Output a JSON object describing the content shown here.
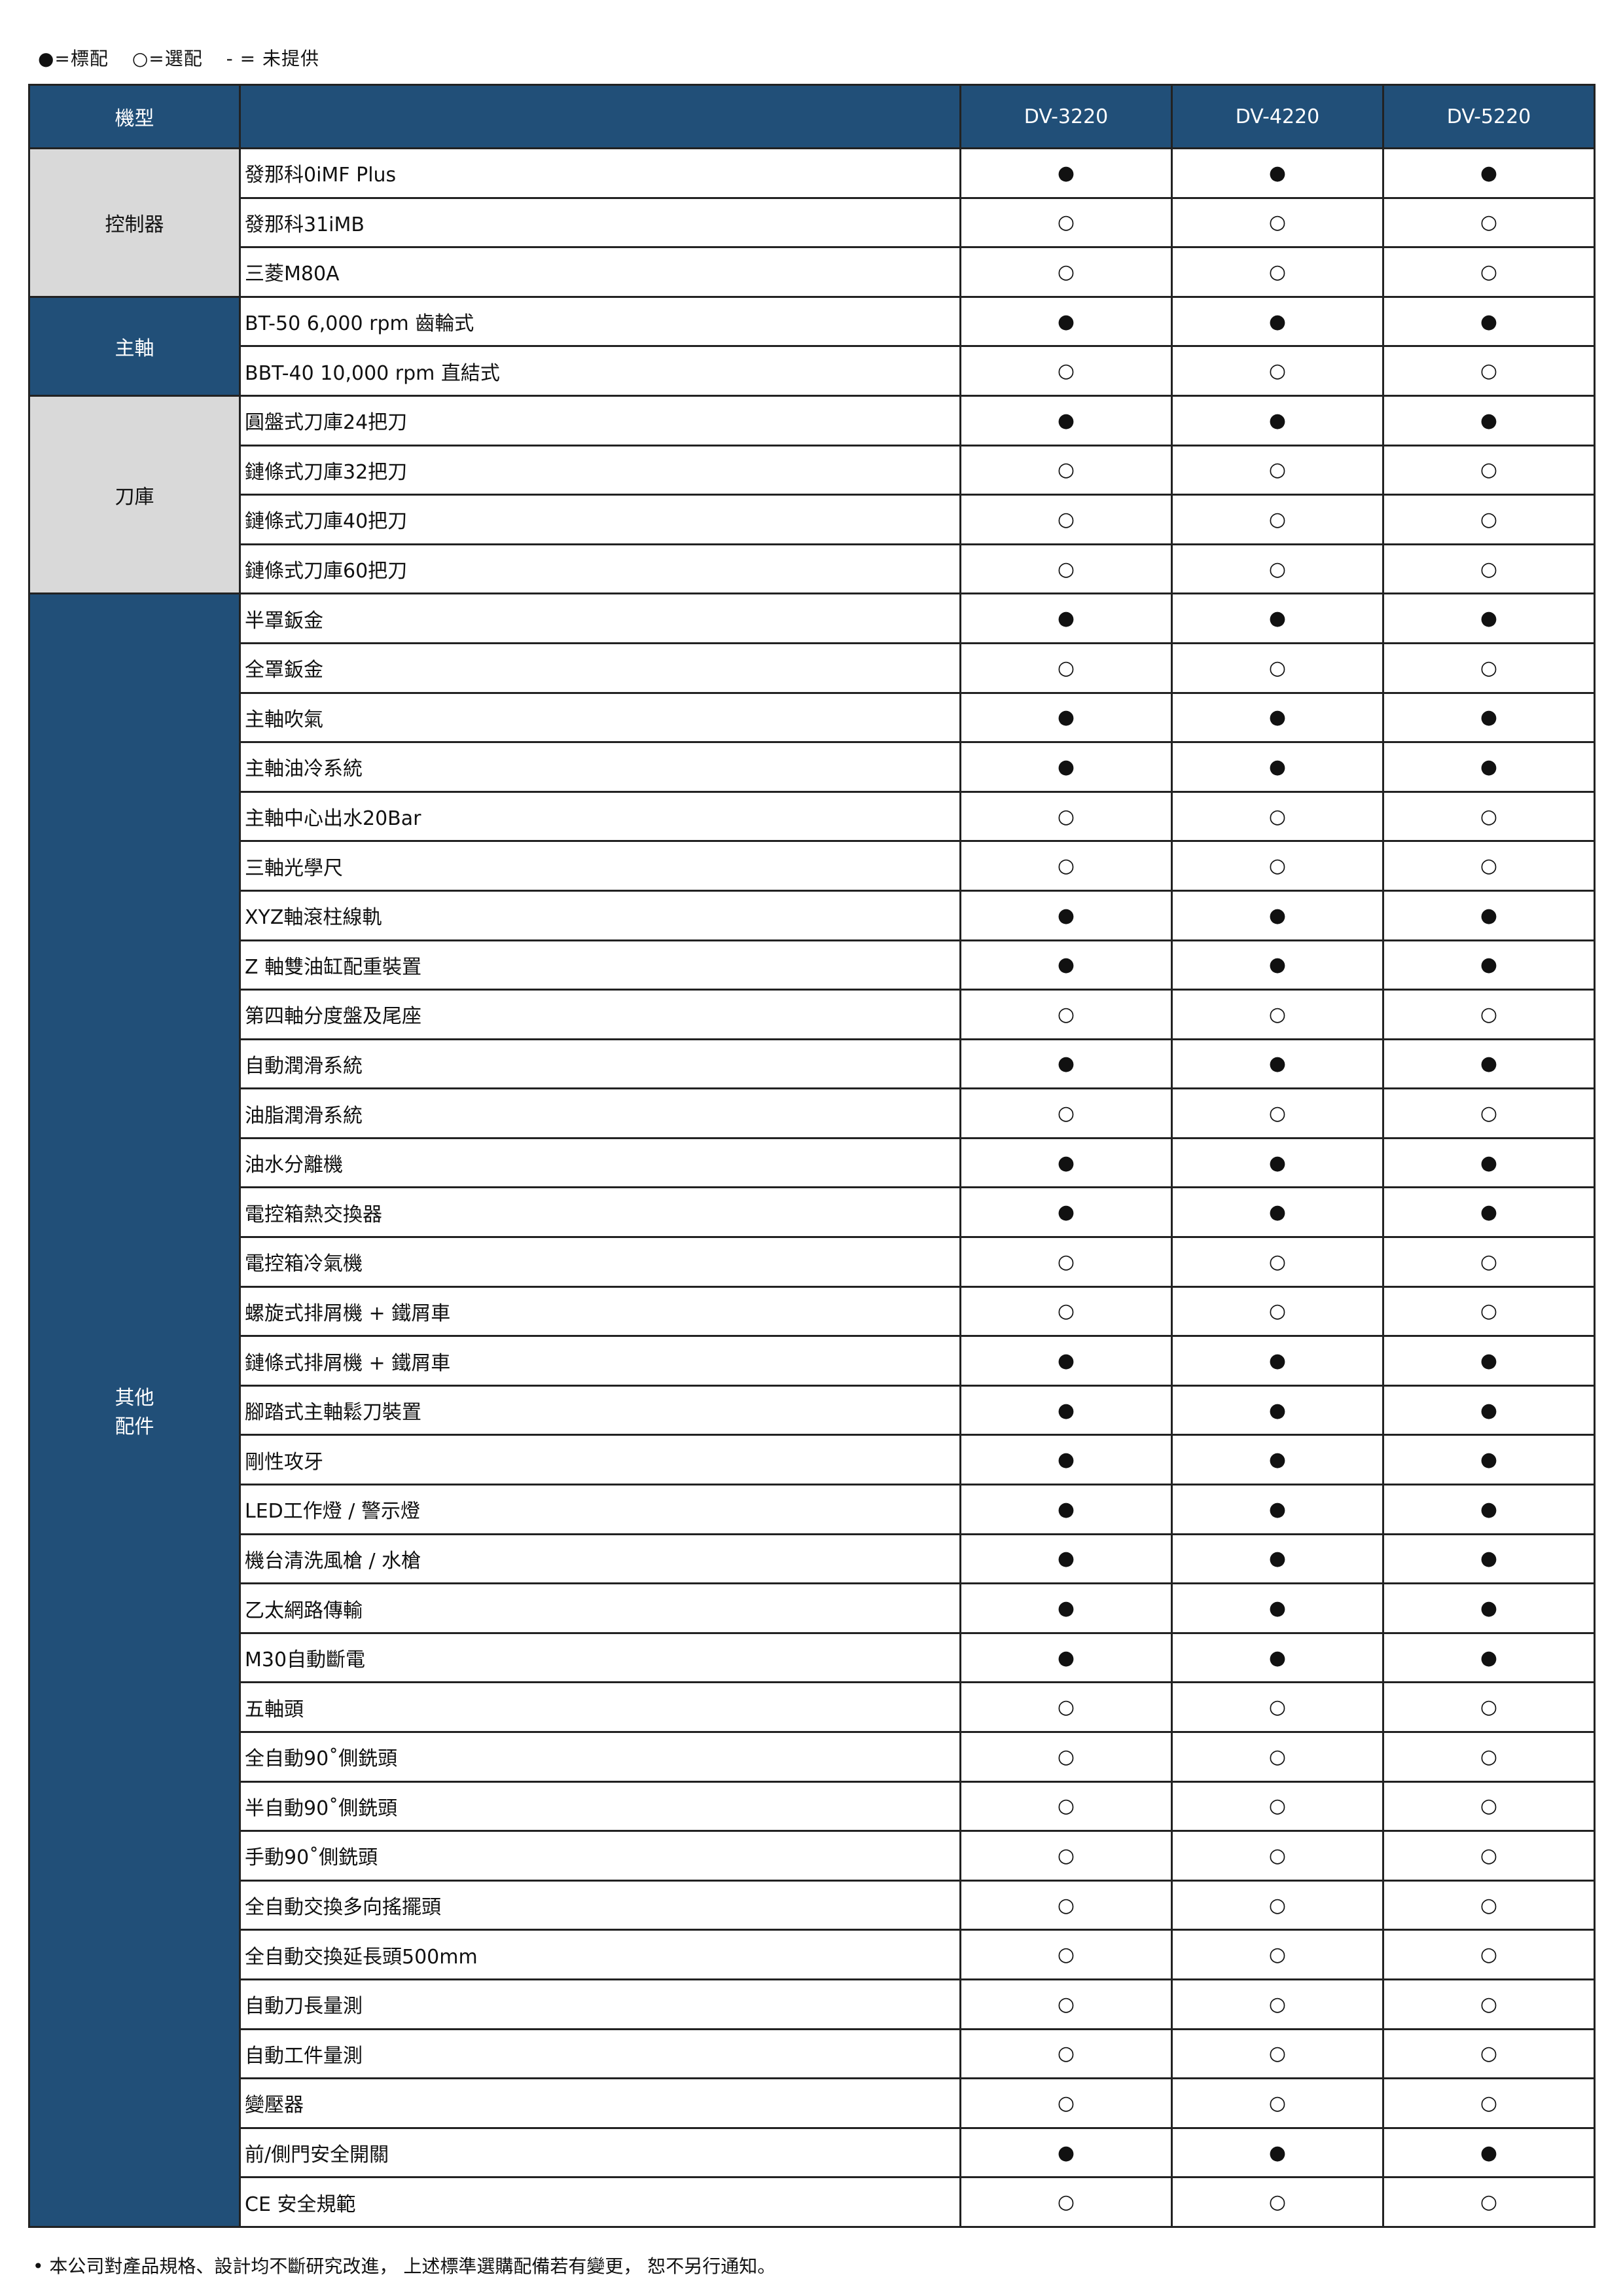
{
  "legend": {
    "standard": "●=標配",
    "optional": "○=選配",
    "unavailable": "- = 未提供"
  },
  "header": {
    "model_label": "機型",
    "models": [
      "DV-3220",
      "DV-4220",
      "DV-5220"
    ]
  },
  "colors": {
    "header_bg": "#214f78",
    "group_gray": "#d9d9d9"
  },
  "groups": [
    {
      "label": "控制器",
      "style": "gray",
      "items": [
        {
          "name": "發那科0iMF Plus",
          "values": [
            "●",
            "●",
            "●"
          ]
        },
        {
          "name": "發那科31iMB",
          "values": [
            "○",
            "○",
            "○"
          ]
        },
        {
          "name": "三菱M80A",
          "values": [
            "○",
            "○",
            "○"
          ]
        }
      ]
    },
    {
      "label": "主軸",
      "style": "blue",
      "items": [
        {
          "name": "BT-50 6,000 rpm 齒輪式",
          "values": [
            "●",
            "●",
            "●"
          ]
        },
        {
          "name": "BBT-40 10,000 rpm 直結式",
          "values": [
            "○",
            "○",
            "○"
          ]
        }
      ]
    },
    {
      "label": "刀庫",
      "style": "gray",
      "items": [
        {
          "name": "圓盤式刀庫24把刀",
          "values": [
            "●",
            "●",
            "●"
          ]
        },
        {
          "name": "鏈條式刀庫32把刀",
          "values": [
            "○",
            "○",
            "○"
          ]
        },
        {
          "name": "鏈條式刀庫40把刀",
          "values": [
            "○",
            "○",
            "○"
          ]
        },
        {
          "name": "鏈條式刀庫60把刀",
          "values": [
            "○",
            "○",
            "○"
          ]
        }
      ]
    },
    {
      "label": "其他\n配件",
      "style": "blue",
      "items": [
        {
          "name": "半罩鈑金",
          "values": [
            "●",
            "●",
            "●"
          ]
        },
        {
          "name": "全罩鈑金",
          "values": [
            "○",
            "○",
            "○"
          ]
        },
        {
          "name": "主軸吹氣",
          "values": [
            "●",
            "●",
            "●"
          ]
        },
        {
          "name": "主軸油冷系統",
          "values": [
            "●",
            "●",
            "●"
          ]
        },
        {
          "name": "主軸中心出水20Bar",
          "values": [
            "○",
            "○",
            "○"
          ]
        },
        {
          "name": "三軸光學尺",
          "values": [
            "○",
            "○",
            "○"
          ]
        },
        {
          "name": "XYZ軸滾柱線軌",
          "values": [
            "●",
            "●",
            "●"
          ]
        },
        {
          "name": "Z 軸雙油缸配重裝置",
          "values": [
            "●",
            "●",
            "●"
          ]
        },
        {
          "name": "第四軸分度盤及尾座",
          "values": [
            "○",
            "○",
            "○"
          ]
        },
        {
          "name": "自動潤滑系統",
          "values": [
            "●",
            "●",
            "●"
          ]
        },
        {
          "name": "油脂潤滑系統",
          "values": [
            "○",
            "○",
            "○"
          ]
        },
        {
          "name": "油水分離機",
          "values": [
            "●",
            "●",
            "●"
          ]
        },
        {
          "name": "電控箱熱交換器",
          "values": [
            "●",
            "●",
            "●"
          ]
        },
        {
          "name": "電控箱冷氣機",
          "values": [
            "○",
            "○",
            "○"
          ]
        },
        {
          "name": "螺旋式排屑機 + 鐵屑車",
          "values": [
            "○",
            "○",
            "○"
          ]
        },
        {
          "name": "鏈條式排屑機 + 鐵屑車",
          "values": [
            "●",
            "●",
            "●"
          ]
        },
        {
          "name": "腳踏式主軸鬆刀裝置",
          "values": [
            "●",
            "●",
            "●"
          ]
        },
        {
          "name": "剛性攻牙",
          "values": [
            "●",
            "●",
            "●"
          ]
        },
        {
          "name": "LED工作燈 / 警示燈",
          "values": [
            "●",
            "●",
            "●"
          ]
        },
        {
          "name": "機台清洗風槍 / 水槍",
          "values": [
            "●",
            "●",
            "●"
          ]
        },
        {
          "name": "乙太網路傳輸",
          "values": [
            "●",
            "●",
            "●"
          ]
        },
        {
          "name": "M30自動斷電",
          "values": [
            "●",
            "●",
            "●"
          ]
        },
        {
          "name": "五軸頭",
          "values": [
            "○",
            "○",
            "○"
          ]
        },
        {
          "name": "全自動90˚側銑頭",
          "values": [
            "○",
            "○",
            "○"
          ]
        },
        {
          "name": "半自動90˚側銑頭",
          "values": [
            "○",
            "○",
            "○"
          ]
        },
        {
          "name": "手動90˚側銑頭",
          "values": [
            "○",
            "○",
            "○"
          ]
        },
        {
          "name": "全自動交換多向搖擺頭",
          "values": [
            "○",
            "○",
            "○"
          ]
        },
        {
          "name": "全自動交換延長頭500mm",
          "values": [
            "○",
            "○",
            "○"
          ]
        },
        {
          "name": "自動刀長量測",
          "values": [
            "○",
            "○",
            "○"
          ]
        },
        {
          "name": "自動工件量測",
          "values": [
            "○",
            "○",
            "○"
          ]
        },
        {
          "name": "變壓器",
          "values": [
            "○",
            "○",
            "○"
          ]
        },
        {
          "name": "前/側門安全開關",
          "values": [
            "●",
            "●",
            "●"
          ]
        },
        {
          "name": "CE 安全規範",
          "values": [
            "○",
            "○",
            "○"
          ]
        }
      ]
    }
  ],
  "footnote": "• 本公司對產品規格、設計均不斷研究改進， 上述標準選購配備若有變更， 恕不另行通知。"
}
